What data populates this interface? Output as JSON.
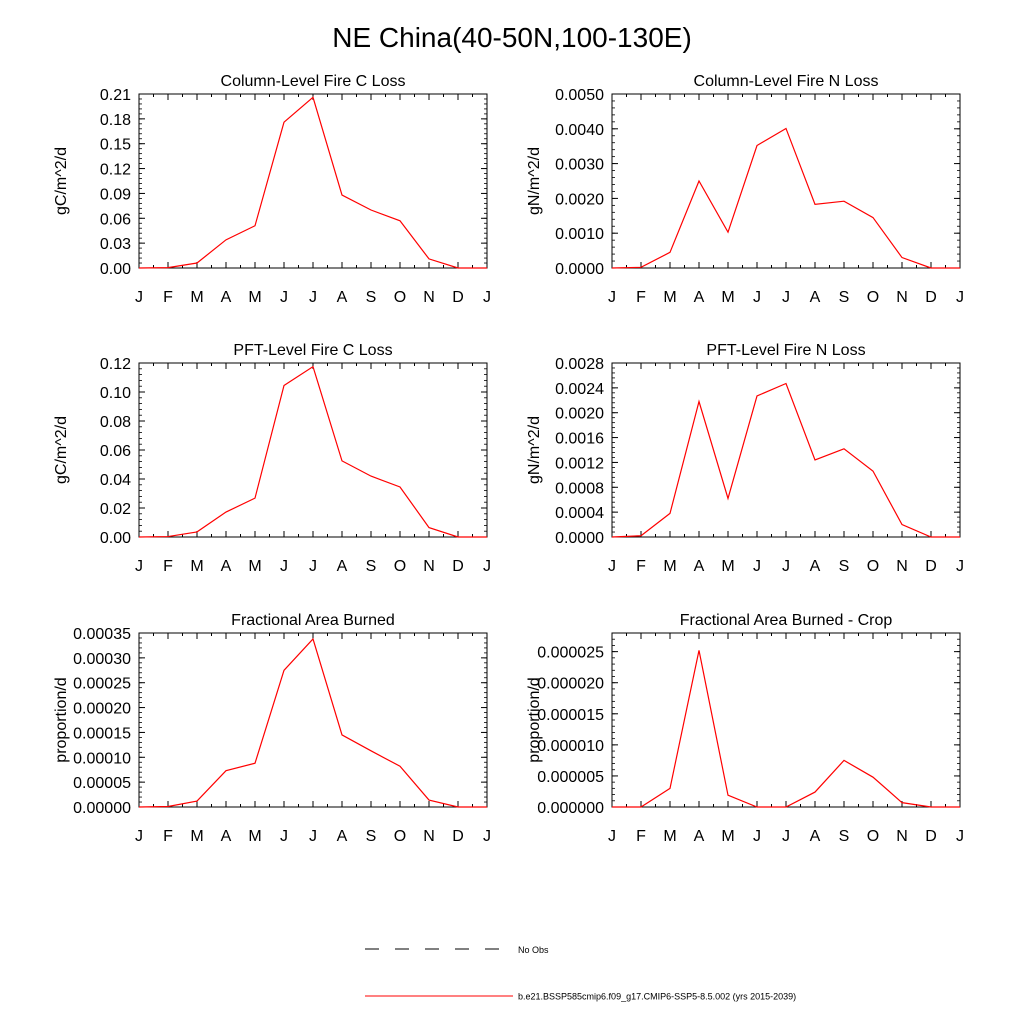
{
  "figure": {
    "title": "NE China(40-50N,100-130E)",
    "legend": [
      {
        "label": "No Obs",
        "style": "dashed",
        "color": "#000000"
      },
      {
        "label": "b.e21.BSSP585cmip6.f09_g17.CMIP6-SSP5-8.5.002 (yrs 2015-2039)",
        "style": "solid",
        "color": "#ff0000"
      }
    ]
  },
  "chart_data": [
    {
      "type": "line",
      "title": "Column-Level Fire C Loss",
      "ylabel": "gC/m^2/d",
      "categories": [
        "J",
        "F",
        "M",
        "A",
        "M",
        "J",
        "J",
        "A",
        "S",
        "O",
        "N",
        "D",
        "J"
      ],
      "ylim": [
        0,
        0.21
      ],
      "yticks": [
        "0.00",
        "0.03",
        "0.06",
        "0.09",
        "0.12",
        "0.15",
        "0.18",
        "0.21"
      ],
      "series": [
        {
          "values": [
            0.0,
            0.0005,
            0.006,
            0.034,
            0.051,
            0.176,
            0.206,
            0.088,
            0.07,
            0.057,
            0.011,
            0.0,
            0.0
          ],
          "color": "#ff0000"
        }
      ]
    },
    {
      "type": "line",
      "title": "Column-Level Fire N Loss",
      "ylabel": "gN/m^2/d",
      "categories": [
        "J",
        "F",
        "M",
        "A",
        "M",
        "J",
        "J",
        "A",
        "S",
        "O",
        "N",
        "D",
        "J"
      ],
      "ylim": [
        0,
        0.005
      ],
      "yticks": [
        "0.0000",
        "0.0010",
        "0.0020",
        "0.0030",
        "0.0040",
        "0.0050"
      ],
      "series": [
        {
          "values": [
            0.0,
            2e-05,
            0.00045,
            0.0025,
            0.00103,
            0.00352,
            0.00401,
            0.00183,
            0.00192,
            0.00145,
            0.0003,
            0.0,
            0.0
          ],
          "color": "#ff0000"
        }
      ]
    },
    {
      "type": "line",
      "title": "PFT-Level Fire C Loss",
      "ylabel": "gC/m^2/d",
      "categories": [
        "J",
        "F",
        "M",
        "A",
        "M",
        "J",
        "J",
        "A",
        "S",
        "O",
        "N",
        "D",
        "J"
      ],
      "ylim": [
        0,
        0.12
      ],
      "yticks": [
        "0.00",
        "0.02",
        "0.04",
        "0.06",
        "0.08",
        "0.10",
        "0.12"
      ],
      "series": [
        {
          "values": [
            0.0,
            0.0003,
            0.0035,
            0.0172,
            0.0268,
            0.1045,
            0.1175,
            0.0525,
            0.042,
            0.0345,
            0.0065,
            0.0,
            0.0
          ],
          "color": "#ff0000"
        }
      ]
    },
    {
      "type": "line",
      "title": "PFT-Level Fire N Loss",
      "ylabel": "gN/m^2/d",
      "categories": [
        "J",
        "F",
        "M",
        "A",
        "M",
        "J",
        "J",
        "A",
        "S",
        "O",
        "N",
        "D",
        "J"
      ],
      "ylim": [
        0,
        0.0028
      ],
      "yticks": [
        "0.0000",
        "0.0004",
        "0.0008",
        "0.0012",
        "0.0016",
        "0.0020",
        "0.0024",
        "0.0028"
      ],
      "series": [
        {
          "values": [
            0.0,
            2e-05,
            0.00038,
            0.00218,
            0.00062,
            0.00227,
            0.00247,
            0.00124,
            0.00142,
            0.00106,
            0.0002,
            0.0,
            0.0
          ],
          "color": "#ff0000"
        }
      ]
    },
    {
      "type": "line",
      "title": "Fractional Area Burned",
      "ylabel": "proportion/d",
      "categories": [
        "J",
        "F",
        "M",
        "A",
        "M",
        "J",
        "J",
        "A",
        "S",
        "O",
        "N",
        "D",
        "J"
      ],
      "ylim": [
        0,
        0.00035
      ],
      "yticks": [
        "0.00000",
        "0.00005",
        "0.00010",
        "0.00015",
        "0.00020",
        "0.00025",
        "0.00030",
        "0.00035"
      ],
      "series": [
        {
          "values": [
            0.0,
            1e-06,
            1.2e-05,
            7.3e-05,
            8.8e-05,
            0.000275,
            0.000338,
            0.000145,
            0.000113,
            8.2e-05,
            1.4e-05,
            0.0,
            0.0
          ],
          "color": "#ff0000"
        }
      ]
    },
    {
      "type": "line",
      "title": "Fractional Area Burned - Crop",
      "ylabel": "proportion/d",
      "categories": [
        "J",
        "F",
        "M",
        "A",
        "M",
        "J",
        "J",
        "A",
        "S",
        "O",
        "N",
        "D",
        "J"
      ],
      "ylim": [
        0,
        2.8e-05
      ],
      "yticks": [
        "0.000000",
        "0.000005",
        "0.000010",
        "0.000015",
        "0.000020",
        "0.000025"
      ],
      "series": [
        {
          "values": [
            0.0,
            0.0,
            3e-06,
            2.52e-05,
            1.9e-06,
            0.0,
            0.0,
            2.4e-06,
            7.5e-06,
            4.8e-06,
            7e-07,
            0.0,
            0.0
          ],
          "color": "#ff0000"
        }
      ]
    }
  ]
}
